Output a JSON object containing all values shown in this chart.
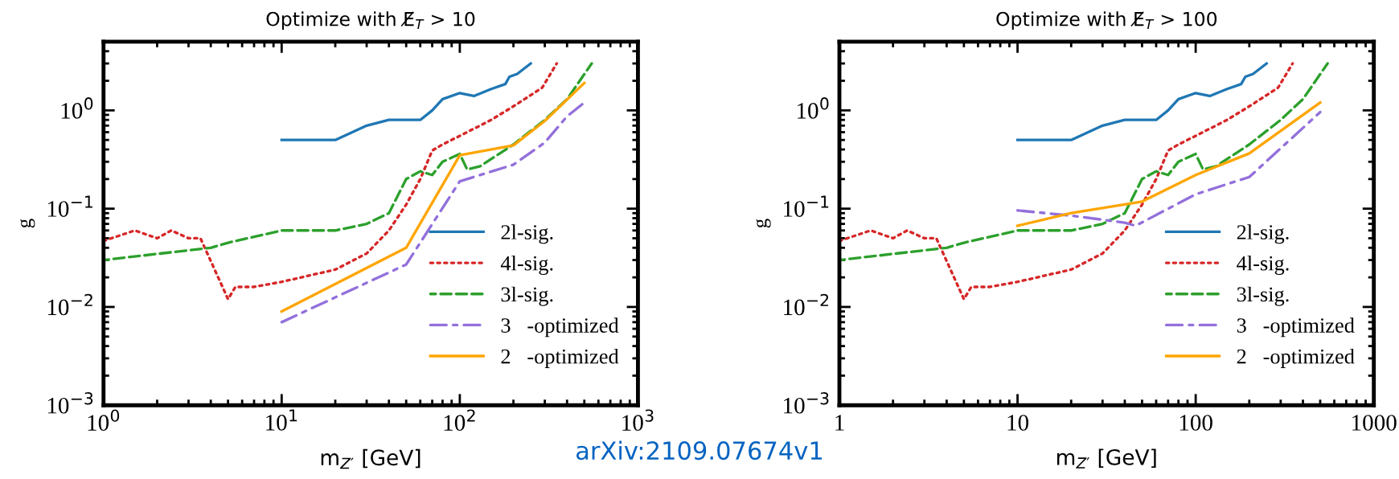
{
  "chart_data": [
    {
      "type": "line",
      "title": "Optimize with E̸$_{T}$ > 10",
      "xlabel": "m$_{Z′}$ [GeV]",
      "ylabel": "g",
      "log": "xy",
      "grid": false,
      "legend": "right",
      "xlim": [
        1,
        1000
      ],
      "xticks": [
        {
          "value": 1,
          "label": "10$^{0}$"
        },
        {
          "value": 10,
          "label": "10$^{1}$"
        },
        {
          "value": 100,
          "label": "10$^{2}$"
        },
        {
          "value": 1000,
          "label": "10$^{3}$"
        }
      ],
      "ylim": [
        0.001,
        5
      ],
      "yticks": [
        {
          "value": 0.001,
          "label": "10$^{−3}$"
        },
        {
          "value": 0.01,
          "label": "10$^{−2}$"
        },
        {
          "value": 0.1,
          "label": "10$^{−1}$"
        },
        {
          "value": 1,
          "label": "10$^{0}$"
        }
      ],
      "series": [
        {
          "name": "2l-sig.",
          "color": "#1f77b4",
          "line_style": "solid",
          "x": [
            10,
            20,
            30,
            40,
            60,
            70,
            80,
            100,
            120,
            150,
            180,
            190,
            210,
            250
          ],
          "values": [
            0.5,
            0.5,
            0.7,
            0.8,
            0.8,
            1.0,
            1.3,
            1.5,
            1.4,
            1.65,
            1.85,
            2.2,
            2.35,
            3.0
          ]
        },
        {
          "name": "4l-sig.",
          "color": "#d62728",
          "line_style": "dotted",
          "x": [
            1,
            1.5,
            2,
            2.4,
            3,
            3.5,
            5,
            5.5,
            7,
            10,
            20,
            30,
            40,
            50,
            60,
            70,
            80,
            100,
            150,
            200,
            290,
            350
          ],
          "values": [
            0.047,
            0.06,
            0.05,
            0.06,
            0.05,
            0.05,
            0.012,
            0.016,
            0.016,
            0.018,
            0.024,
            0.035,
            0.06,
            0.11,
            0.2,
            0.39,
            0.45,
            0.55,
            0.8,
            1.1,
            1.7,
            3.0
          ]
        },
        {
          "name": "3l-sig.",
          "color": "#2ca02c",
          "line_style": "dashed",
          "x": [
            1,
            4,
            5,
            10,
            20,
            30,
            40,
            50,
            60,
            70,
            80,
            100,
            110,
            130,
            200,
            300,
            400,
            550
          ],
          "values": [
            0.03,
            0.04,
            0.045,
            0.06,
            0.06,
            0.07,
            0.09,
            0.2,
            0.24,
            0.22,
            0.3,
            0.36,
            0.25,
            0.27,
            0.45,
            0.8,
            1.3,
            3.0
          ]
        },
        {
          "name": "3   -optimized",
          "color": "#9370db",
          "line_style": "dashdot",
          "x": [
            10,
            50,
            100,
            200,
            300,
            400,
            500
          ],
          "values": [
            0.007,
            0.027,
            0.19,
            0.28,
            0.47,
            0.87,
            1.2
          ]
        },
        {
          "name": "2   -optimized",
          "color": "#ffa500",
          "line_style": "solid",
          "x": [
            10,
            50,
            100,
            200,
            300,
            500
          ],
          "values": [
            0.009,
            0.04,
            0.35,
            0.44,
            0.78,
            1.9
          ]
        }
      ]
    },
    {
      "type": "line",
      "title": "Optimize with E̸$_{T}$ > 100",
      "xlabel": "m$_{Z′}$ [GeV]",
      "ylabel": "g",
      "log": "xy",
      "grid": false,
      "legend": "right",
      "xlim": [
        1,
        1000
      ],
      "xticks": [
        1,
        10,
        100,
        1000
      ],
      "ylim": [
        0.001,
        5
      ],
      "yticks": [
        {
          "value": 0.001,
          "label": "10$^{−3}$"
        },
        {
          "value": 0.01,
          "label": "10$^{−2}$"
        },
        {
          "value": 0.1,
          "label": "10$^{−1}$"
        },
        {
          "value": 1,
          "label": "10$^{0}$"
        }
      ],
      "annotations": [
        "arXiv:2109.07674v1"
      ],
      "series": [
        {
          "name": "2l-sig.",
          "color": "#1f77b4",
          "line_style": "solid",
          "x": [
            10,
            20,
            30,
            40,
            60,
            70,
            80,
            100,
            120,
            150,
            180,
            190,
            210,
            250
          ],
          "values": [
            0.5,
            0.5,
            0.7,
            0.8,
            0.8,
            1.0,
            1.3,
            1.5,
            1.4,
            1.65,
            1.85,
            2.2,
            2.35,
            3.0
          ]
        },
        {
          "name": "4l-sig.",
          "color": "#d62728",
          "line_style": "dotted",
          "x": [
            1,
            1.5,
            2,
            2.4,
            3,
            3.5,
            5,
            5.5,
            7,
            10,
            20,
            30,
            40,
            50,
            60,
            70,
            80,
            100,
            150,
            200,
            290,
            350
          ],
          "values": [
            0.047,
            0.06,
            0.05,
            0.06,
            0.05,
            0.05,
            0.012,
            0.016,
            0.016,
            0.018,
            0.024,
            0.035,
            0.06,
            0.11,
            0.2,
            0.39,
            0.45,
            0.55,
            0.8,
            1.1,
            1.7,
            3.0
          ]
        },
        {
          "name": "3l-sig.",
          "color": "#2ca02c",
          "line_style": "dashed",
          "x": [
            1,
            4,
            5,
            10,
            20,
            30,
            40,
            50,
            60,
            70,
            80,
            100,
            110,
            130,
            200,
            300,
            400,
            550
          ],
          "values": [
            0.03,
            0.04,
            0.045,
            0.06,
            0.06,
            0.07,
            0.09,
            0.2,
            0.24,
            0.22,
            0.3,
            0.36,
            0.25,
            0.27,
            0.45,
            0.8,
            1.3,
            3.0
          ]
        },
        {
          "name": "3   -optimized",
          "color": "#9370db",
          "line_style": "dashdot",
          "x": [
            10,
            20,
            40,
            46,
            100,
            200,
            500
          ],
          "values": [
            0.096,
            0.085,
            0.072,
            0.067,
            0.14,
            0.21,
            0.96
          ]
        },
        {
          "name": "2   -optimized",
          "color": "#ffa500",
          "line_style": "solid",
          "x": [
            10,
            20,
            50,
            100,
            200,
            500
          ],
          "values": [
            0.067,
            0.09,
            0.118,
            0.22,
            0.365,
            1.2
          ]
        }
      ]
    }
  ]
}
